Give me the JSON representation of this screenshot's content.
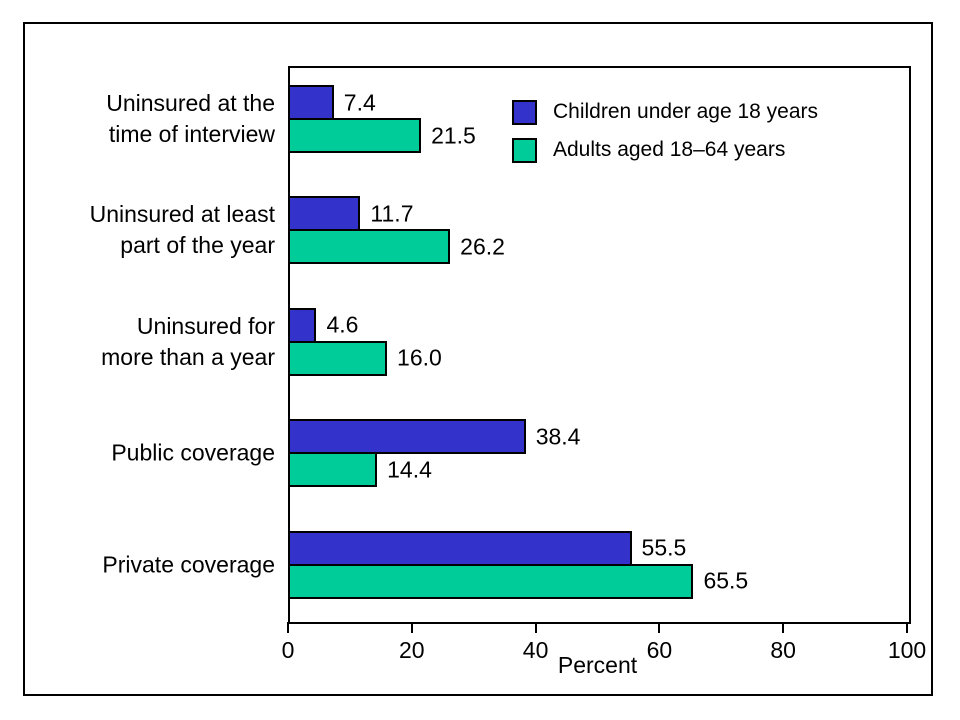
{
  "chart_data": {
    "type": "bar",
    "orientation": "horizontal",
    "title": "",
    "xlabel": "Percent",
    "xlim": [
      0,
      100
    ],
    "x_ticks": [
      "0",
      "20",
      "40",
      "60",
      "80",
      "100"
    ],
    "grid": false,
    "legend_position": "inside-top-right",
    "categories": [
      "Uninsured at the time of interview",
      "Uninsured at least part of the year",
      "Uninsured for more than a year",
      "Public coverage",
      "Private coverage"
    ],
    "category_lines": [
      [
        "Uninsured at the",
        "time of interview"
      ],
      [
        "Uninsured at least",
        "part of the year"
      ],
      [
        "Uninsured for",
        "more than a year"
      ],
      [
        "Public coverage"
      ],
      [
        "Private coverage"
      ]
    ],
    "series": [
      {
        "name": "Children under age 18 years",
        "color": "#3333cc",
        "values": [
          7.4,
          11.7,
          4.6,
          38.4,
          55.5
        ],
        "value_labels": [
          "7.4",
          "11.7",
          "4.6",
          "38.4",
          "55.5"
        ]
      },
      {
        "name": "Adults aged 18–64 years",
        "color": "#00cc99",
        "values": [
          21.5,
          26.2,
          16.0,
          14.4,
          65.5
        ],
        "value_labels": [
          "21.5",
          "26.2",
          "16.0",
          "14.4",
          "65.5"
        ]
      }
    ]
  }
}
